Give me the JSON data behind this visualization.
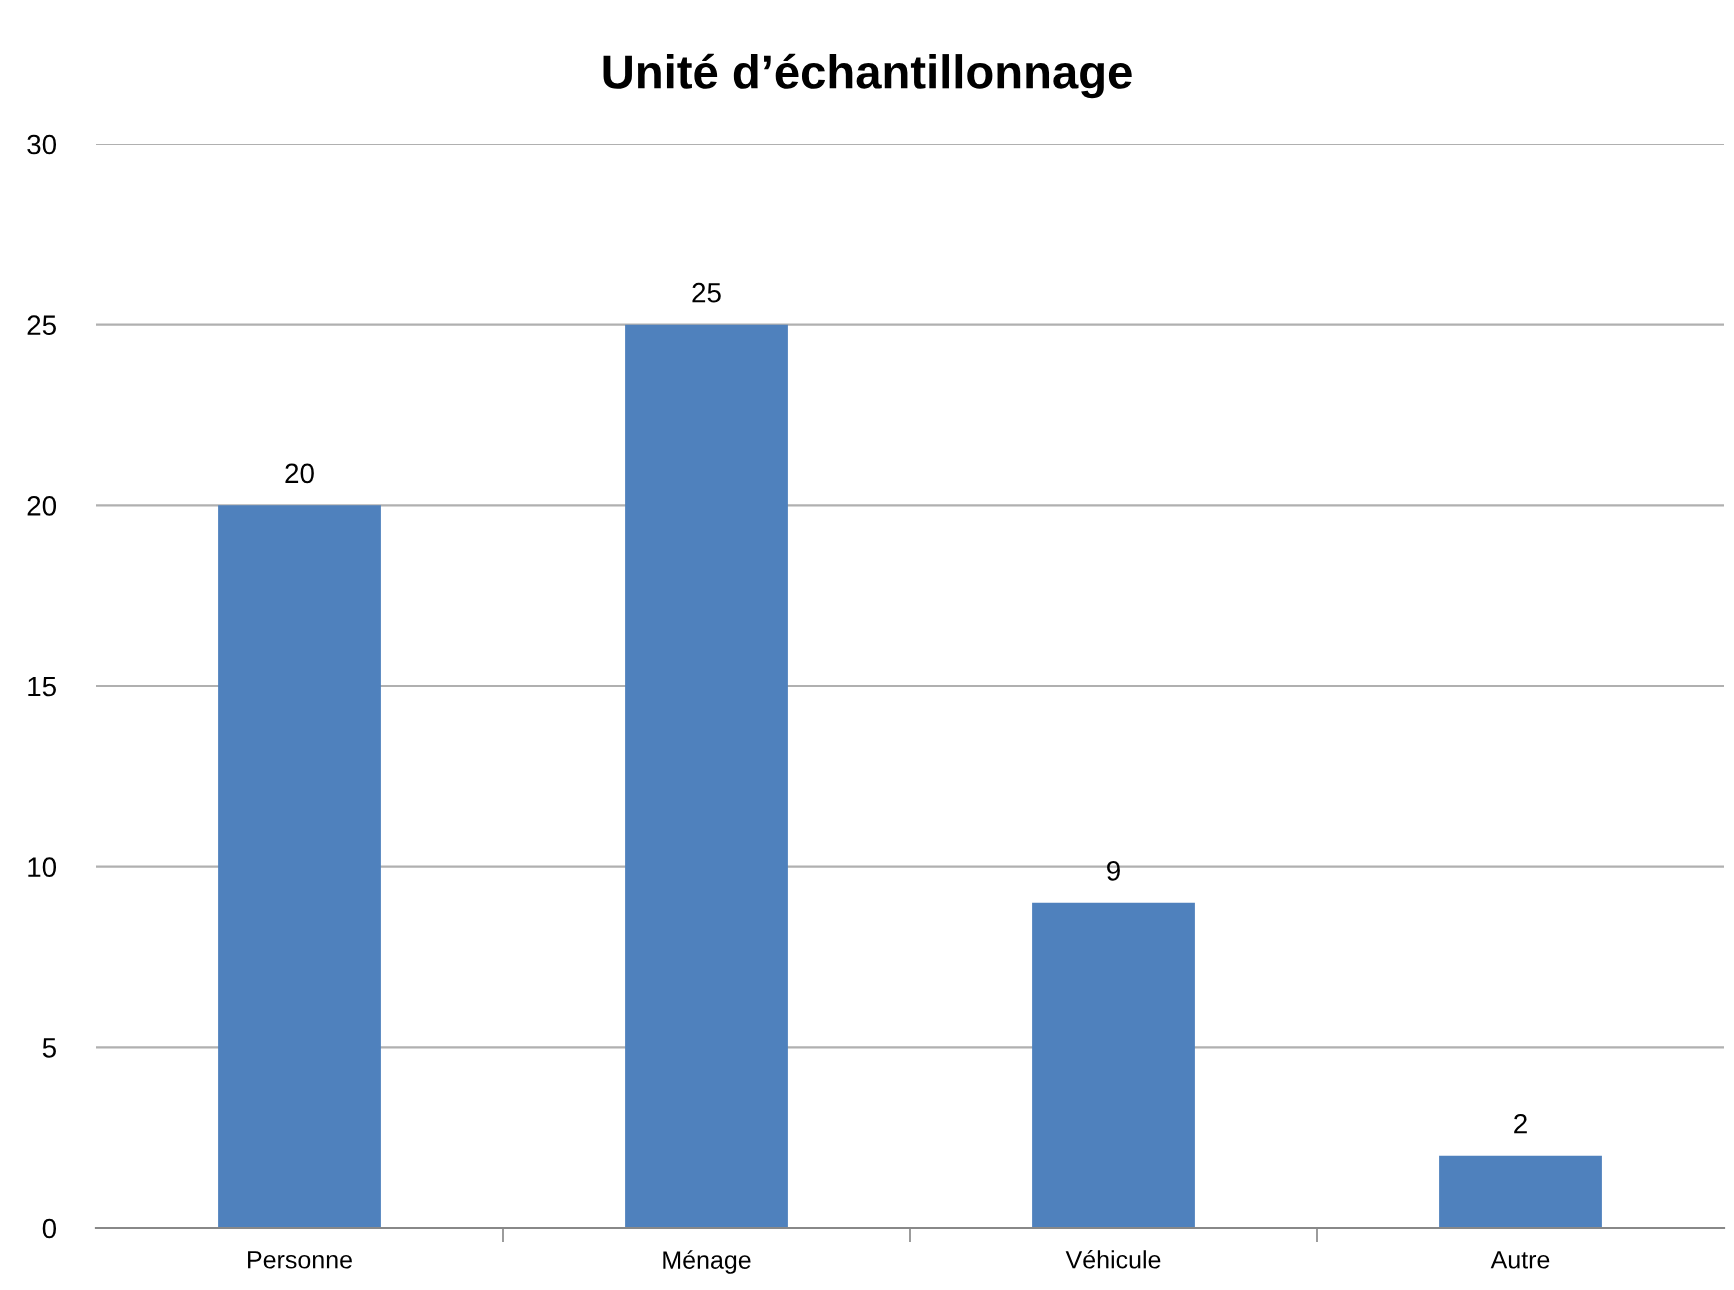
{
  "chart_data": {
    "type": "bar",
    "title": "Unité d’échantillonnage",
    "categories": [
      "Personne",
      "Ménage",
      "Véhicule",
      "Autre"
    ],
    "values": [
      20,
      25,
      9,
      2
    ],
    "color": "#4f81bd",
    "ylim": [
      0,
      30
    ],
    "yticks": [
      0,
      5,
      10,
      15,
      20,
      25,
      30
    ],
    "grid": "y",
    "data_labels": true
  }
}
